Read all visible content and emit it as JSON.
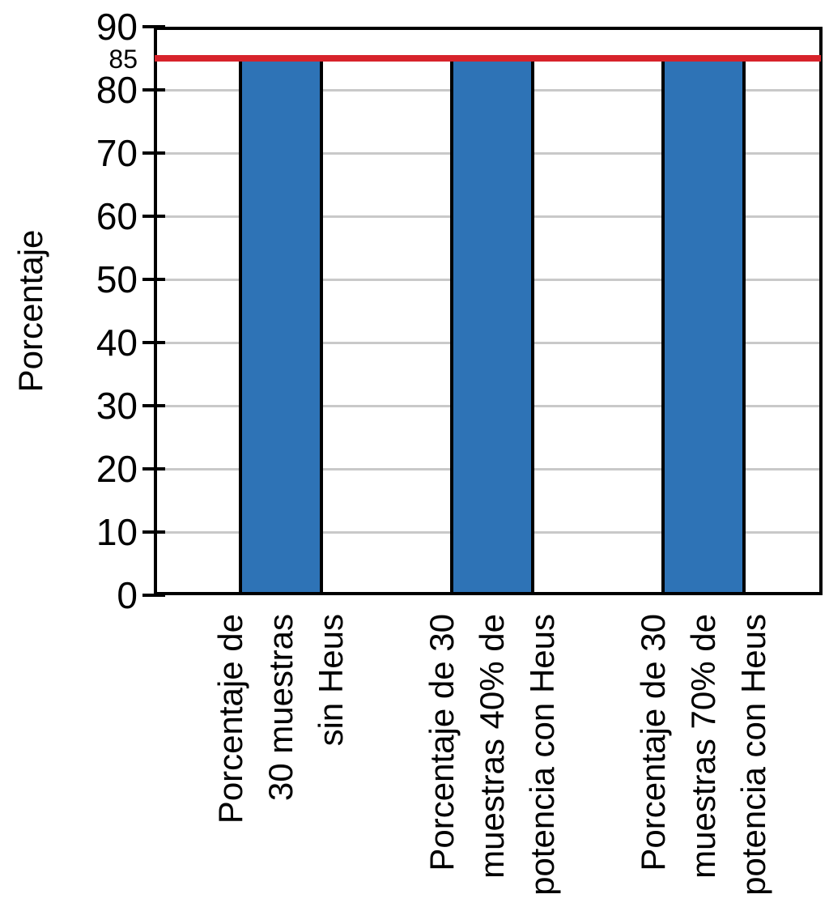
{
  "chart_data": {
    "type": "bar",
    "title": "",
    "xlabel": "",
    "ylabel": "Porcentaje",
    "categories": [
      "Porcentaje de\n30 muestras\nsin Heus",
      "Porcentaje de 30\nmuestras 40% de\npotencia con Heus",
      "Porcentaje de 30\nmuestras 70% de\npotencia con Heus"
    ],
    "values": [
      85,
      85,
      85
    ],
    "ylim": [
      0,
      90
    ],
    "yticks": [
      0,
      10,
      20,
      30,
      40,
      50,
      60,
      70,
      80,
      90
    ],
    "grid": true,
    "legend_position": "none",
    "bar_color": "#2e73b6",
    "bar_border_color": "#000000",
    "gridline_color": "#c9c9c9",
    "frame_color": "#000000",
    "background": "#ffffff",
    "reference_line": {
      "value": 85,
      "label": "85",
      "color": "#d7232b"
    }
  }
}
